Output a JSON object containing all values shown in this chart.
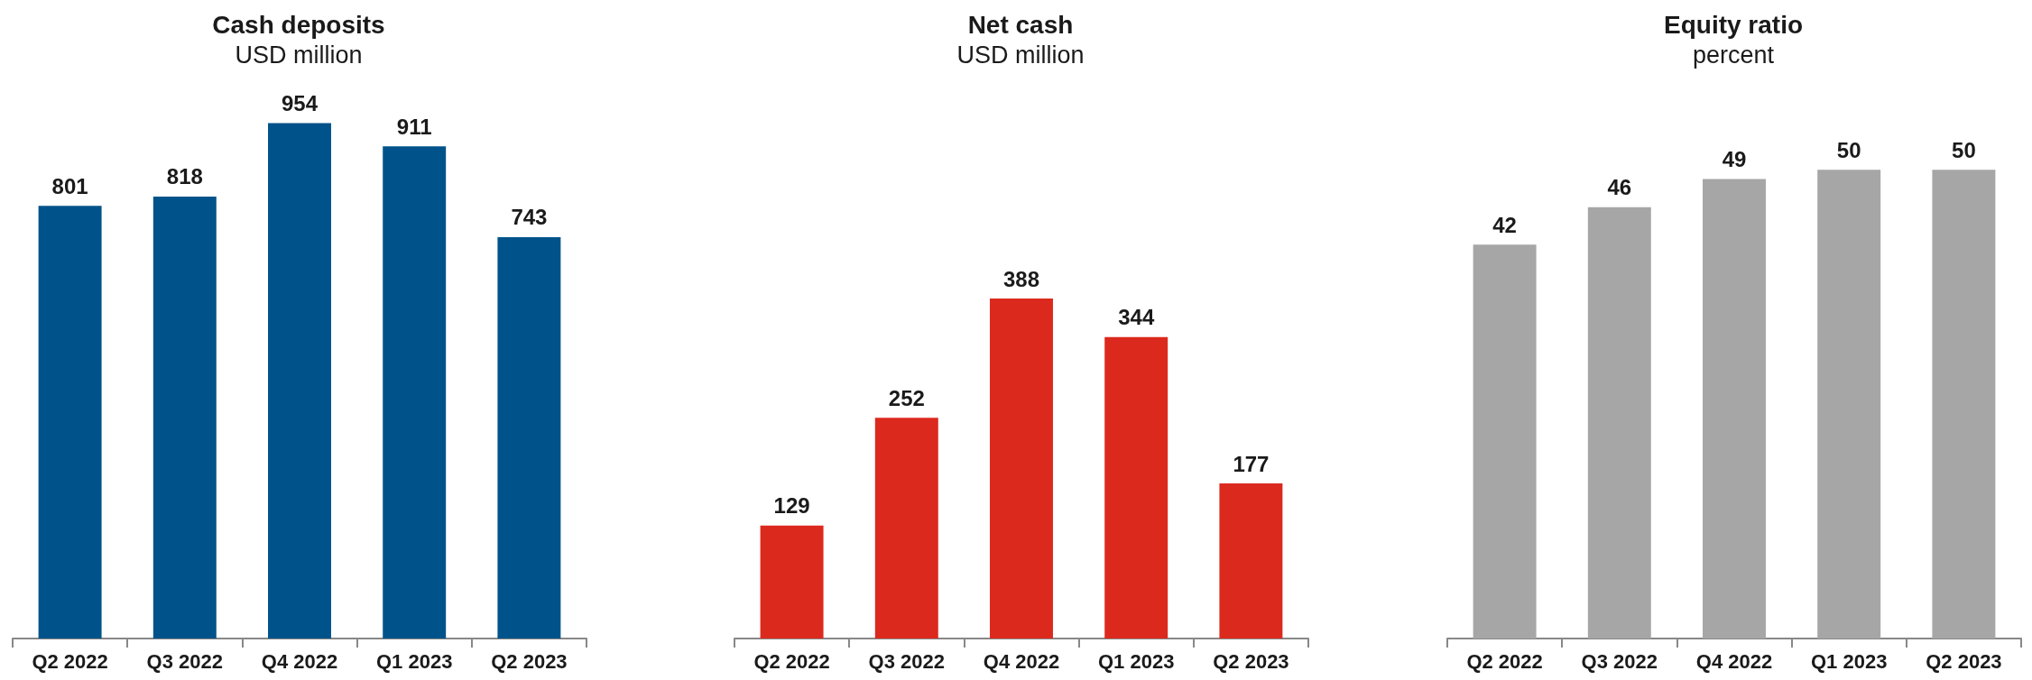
{
  "chart_data": [
    {
      "type": "bar",
      "title": "Cash deposits",
      "subtitle": "USD million",
      "categories": [
        "Q2 2022",
        "Q3 2022",
        "Q4 2022",
        "Q1 2023",
        "Q2 2023"
      ],
      "values": [
        801,
        818,
        954,
        911,
        743
      ],
      "color": "#00538a",
      "data_labels": true,
      "tick_labels": "x"
    },
    {
      "type": "bar",
      "title": "Net cash",
      "subtitle": "USD million",
      "categories": [
        "Q2 2022",
        "Q3 2022",
        "Q4 2022",
        "Q1 2023",
        "Q2 2023"
      ],
      "values": [
        129,
        252,
        388,
        344,
        177
      ],
      "color": "#dc291e",
      "data_labels": true,
      "tick_labels": "x"
    },
    {
      "type": "bar",
      "title": "Equity ratio",
      "subtitle": "percent",
      "categories": [
        "Q2 2022",
        "Q3 2022",
        "Q4 2022",
        "Q1 2023",
        "Q2 2023"
      ],
      "values": [
        42,
        46,
        49,
        50,
        50
      ],
      "color": "#a6a6a6",
      "data_labels": true,
      "tick_labels": "x"
    }
  ]
}
